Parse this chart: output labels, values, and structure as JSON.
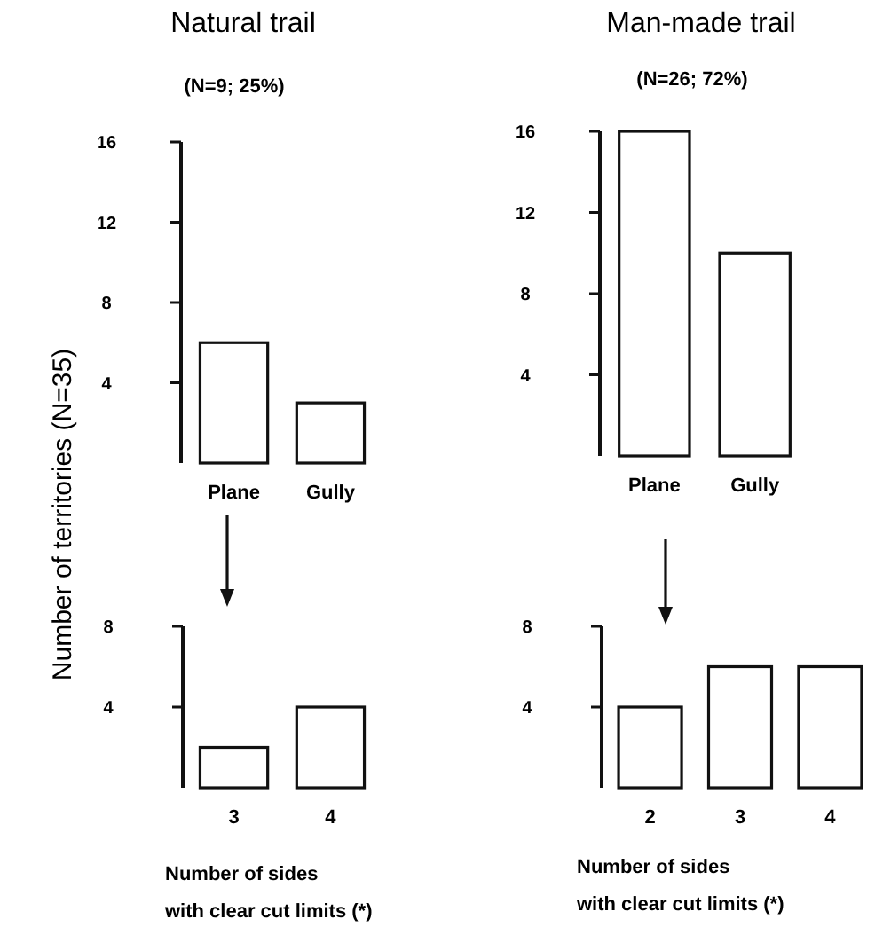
{
  "chart_data": [
    {
      "type": "bar",
      "title": "Natural trail",
      "subtitle": "(N=9; 25%)",
      "ylabel": "Number of territories (N=35)",
      "categories": [
        "Plane",
        "Gully"
      ],
      "values": [
        6,
        3
      ],
      "color": "#ffffff",
      "ylim": [
        0,
        16
      ],
      "yticks": [
        4,
        8,
        12,
        16
      ],
      "grid": false
    },
    {
      "type": "bar",
      "title": "Man-made trail",
      "subtitle": "(N=26; 72%)",
      "categories": [
        "Plane",
        "Gully"
      ],
      "values": [
        16,
        10
      ],
      "color": "#ffffff",
      "ylim": [
        0,
        16
      ],
      "yticks": [
        4,
        8,
        12,
        16
      ],
      "grid": false
    },
    {
      "type": "bar",
      "xlabel": "Number of sides\nwith clear cut limits (*)",
      "categories": [
        "3",
        "4"
      ],
      "values": [
        2,
        4
      ],
      "color": "#ffffff",
      "ylim": [
        0,
        8
      ],
      "yticks": [
        4,
        8
      ],
      "grid": false
    },
    {
      "type": "bar",
      "xlabel": "Number of sides\nwith clear cut limits (*)",
      "categories": [
        "2",
        "3",
        "4"
      ],
      "values": [
        4,
        6,
        6
      ],
      "color": "#ffffff",
      "ylim": [
        0,
        8
      ],
      "yticks": [
        4,
        8
      ],
      "grid": false
    }
  ]
}
